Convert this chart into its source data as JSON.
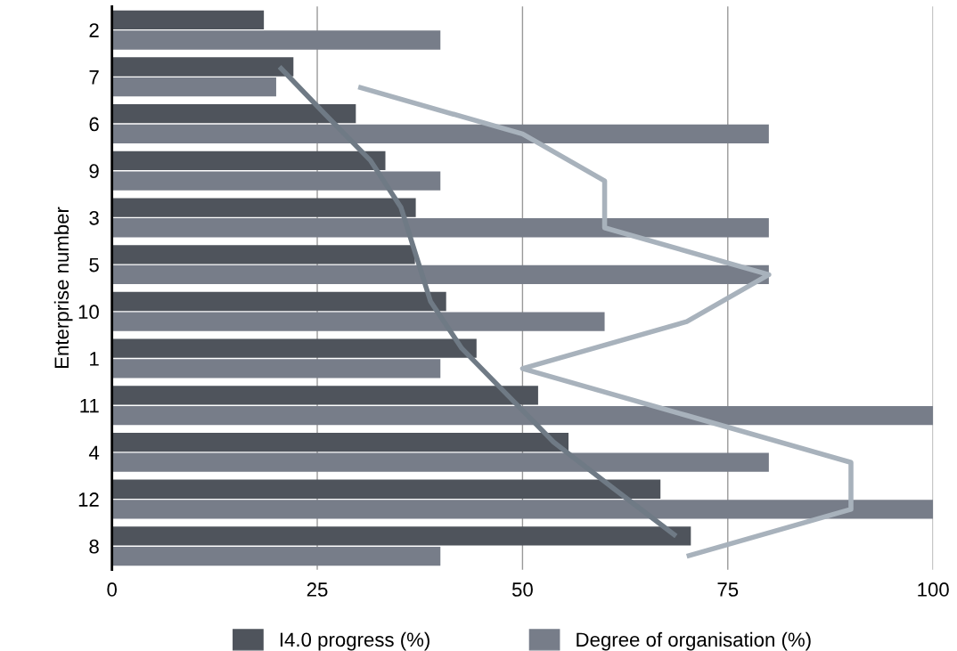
{
  "chart_data": {
    "type": "bar",
    "orientation": "horizontal",
    "ylabel": "Enterprise number",
    "categories": [
      "2",
      "7",
      "6",
      "9",
      "3",
      "5",
      "10",
      "1",
      "11",
      "4",
      "12",
      "8"
    ],
    "series": [
      {
        "name": "I4.0 progress (%)",
        "color": "#4f545c",
        "values": [
          18.5,
          22.1,
          29.7,
          33.3,
          37.0,
          36.9,
          40.7,
          44.4,
          51.9,
          55.6,
          66.8,
          70.5
        ]
      },
      {
        "name": "Degree of organisation (%)",
        "color": "#777d89",
        "values": [
          40,
          20,
          80,
          40,
          80,
          80,
          60,
          40,
          100,
          80,
          100,
          40
        ]
      },
      {
        "type": "line",
        "color": "#6f7a85",
        "values": [
          null,
          20.4,
          25.9,
          31.5,
          35.2,
          37.0,
          38.8,
          42.6,
          48.2,
          53.8,
          61.2,
          68.7
        ]
      },
      {
        "type": "line",
        "color": "#a8b2bc",
        "values": [
          null,
          30,
          50,
          60,
          60,
          80,
          70,
          50,
          70,
          90,
          90,
          70
        ]
      }
    ],
    "xlim": [
      0,
      100
    ],
    "xticks": [
      0,
      25,
      50,
      75,
      100
    ],
    "grid": "x",
    "legend": "bottom"
  }
}
